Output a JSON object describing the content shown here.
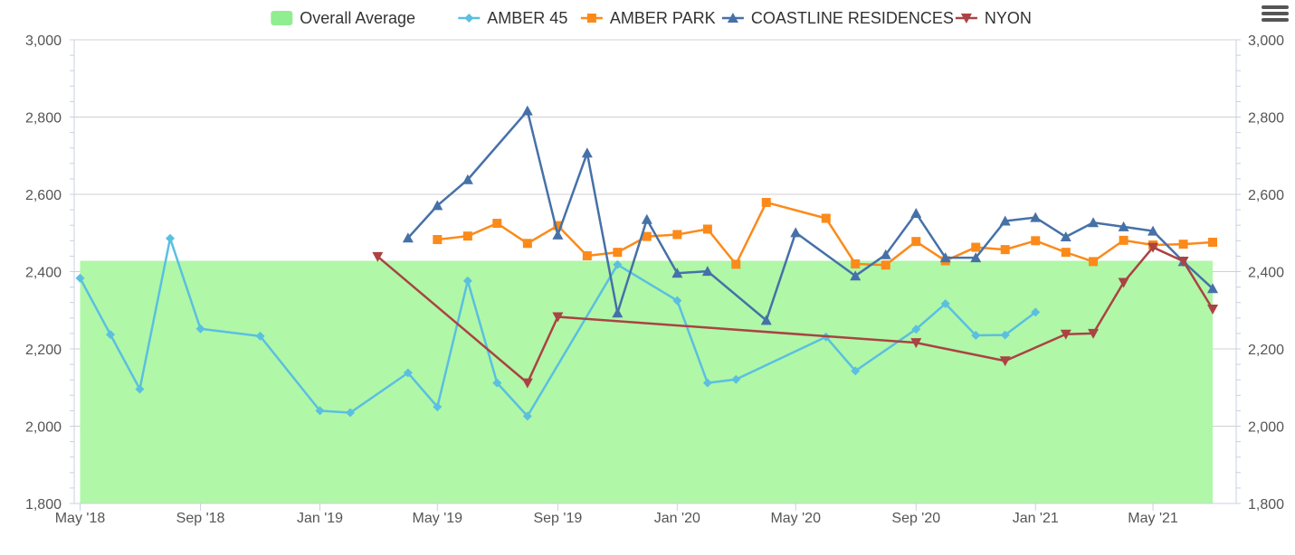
{
  "menu": {
    "icon": "hamburger-menu-icon"
  },
  "colors": {
    "average": "#b0f7a8",
    "average_legend": "#90ee90",
    "amber45": "#5bbfe0",
    "amberpark": "#fb8a1a",
    "coastline": "#4671a8",
    "nyon": "#aa4343",
    "grid": "#d0d0d0",
    "axis_text": "#555555"
  },
  "chart_data": {
    "type": "line",
    "x_type": "date",
    "xlim": [
      "2018-04-25",
      "2021-07-25"
    ],
    "ylim": [
      1800,
      3000
    ],
    "y_ticks": [
      1800,
      2000,
      2200,
      2400,
      2600,
      2800,
      3000
    ],
    "y_tick_labels": [
      "1,800",
      "2,000",
      "2,200",
      "2,400",
      "2,600",
      "2,800",
      "3,000"
    ],
    "x_ticks": [
      "2018-05-01",
      "2018-09-01",
      "2019-01-01",
      "2019-05-01",
      "2019-09-01",
      "2020-01-01",
      "2020-05-01",
      "2020-09-01",
      "2021-01-01",
      "2021-05-01"
    ],
    "x_tick_labels": [
      "May '18",
      "Sep '18",
      "Jan '19",
      "May '19",
      "Sep '19",
      "Jan '20",
      "May '20",
      "Sep '20",
      "Jan '21",
      "May '21"
    ],
    "grid": true,
    "dual_y_axis": true,
    "legend_position": "top-center",
    "average": {
      "name": "Overall Average",
      "type": "area",
      "value": 2428,
      "x_start": "2018-05-01",
      "x_end": "2021-07-01"
    },
    "series": [
      {
        "name": "AMBER 45",
        "marker": "diamond",
        "color_key": "amber45",
        "points": [
          [
            "2018-05-01",
            2383
          ],
          [
            "2018-06-01",
            2237
          ],
          [
            "2018-07-01",
            2096
          ],
          [
            "2018-08-01",
            2486
          ],
          [
            "2018-09-01",
            2252
          ],
          [
            "2018-11-01",
            2233
          ],
          [
            "2019-01-01",
            2040
          ],
          [
            "2019-02-01",
            2035
          ],
          [
            "2019-04-01",
            2138
          ],
          [
            "2019-05-01",
            2050
          ],
          [
            "2019-06-01",
            2376
          ],
          [
            "2019-07-01",
            2112
          ],
          [
            "2019-08-01",
            2026
          ],
          [
            "2019-11-01",
            2418
          ],
          [
            "2020-01-01",
            2325
          ],
          [
            "2020-02-01",
            2112
          ],
          [
            "2020-03-01",
            2121
          ],
          [
            "2020-06-01",
            2231
          ],
          [
            "2020-07-01",
            2143
          ],
          [
            "2020-09-01",
            2251
          ],
          [
            "2020-10-01",
            2317
          ],
          [
            "2020-11-01",
            2235
          ],
          [
            "2020-12-01",
            2236
          ],
          [
            "2021-01-01",
            2295
          ]
        ]
      },
      {
        "name": "AMBER PARK",
        "marker": "square",
        "color_key": "amberpark",
        "points": [
          [
            "2019-05-01",
            2483
          ],
          [
            "2019-06-01",
            2492
          ],
          [
            "2019-07-01",
            2525
          ],
          [
            "2019-08-01",
            2473
          ],
          [
            "2019-09-01",
            2519
          ],
          [
            "2019-10-01",
            2441
          ],
          [
            "2019-11-01",
            2450
          ],
          [
            "2019-12-01",
            2491
          ],
          [
            "2020-01-01",
            2496
          ],
          [
            "2020-02-01",
            2510
          ],
          [
            "2020-03-01",
            2419
          ],
          [
            "2020-04-01",
            2579
          ],
          [
            "2020-06-01",
            2538
          ],
          [
            "2020-07-01",
            2420
          ],
          [
            "2020-08-01",
            2417
          ],
          [
            "2020-09-01",
            2478
          ],
          [
            "2020-10-01",
            2428
          ],
          [
            "2020-11-01",
            2463
          ],
          [
            "2020-12-01",
            2457
          ],
          [
            "2021-01-01",
            2480
          ],
          [
            "2021-02-01",
            2450
          ],
          [
            "2021-03-01",
            2426
          ],
          [
            "2021-04-01",
            2481
          ],
          [
            "2021-05-01",
            2469
          ],
          [
            "2021-06-01",
            2471
          ],
          [
            "2021-07-01",
            2476
          ]
        ]
      },
      {
        "name": "COASTLINE RESIDENCES",
        "marker": "triangle",
        "color_key": "coastline",
        "points": [
          [
            "2019-04-01",
            2487
          ],
          [
            "2019-05-01",
            2571
          ],
          [
            "2019-06-01",
            2638
          ],
          [
            "2019-08-01",
            2816
          ],
          [
            "2019-09-01",
            2495
          ],
          [
            "2019-10-01",
            2707
          ],
          [
            "2019-11-01",
            2293
          ],
          [
            "2019-12-01",
            2535
          ],
          [
            "2020-01-01",
            2396
          ],
          [
            "2020-02-01",
            2401
          ],
          [
            "2020-04-01",
            2274
          ],
          [
            "2020-05-01",
            2501
          ],
          [
            "2020-07-01",
            2389
          ],
          [
            "2020-08-01",
            2444
          ],
          [
            "2020-09-01",
            2551
          ],
          [
            "2020-10-01",
            2436
          ],
          [
            "2020-11-01",
            2436
          ],
          [
            "2020-12-01",
            2531
          ],
          [
            "2021-01-01",
            2540
          ],
          [
            "2021-02-01",
            2490
          ],
          [
            "2021-03-01",
            2527
          ],
          [
            "2021-04-01",
            2516
          ],
          [
            "2021-05-01",
            2505
          ],
          [
            "2021-06-01",
            2426
          ],
          [
            "2021-07-01",
            2356
          ]
        ]
      },
      {
        "name": "NYON",
        "marker": "triangle-down",
        "color_key": "nyon",
        "points": [
          [
            "2019-03-01",
            2439
          ],
          [
            "2019-08-01",
            2112
          ],
          [
            "2019-09-01",
            2283
          ],
          [
            "2020-09-01",
            2216
          ],
          [
            "2020-12-01",
            2169
          ],
          [
            "2021-02-01",
            2238
          ],
          [
            "2021-03-01",
            2240
          ],
          [
            "2021-04-01",
            2372
          ],
          [
            "2021-05-01",
            2463
          ],
          [
            "2021-06-01",
            2427
          ],
          [
            "2021-07-01",
            2303
          ]
        ]
      }
    ]
  }
}
